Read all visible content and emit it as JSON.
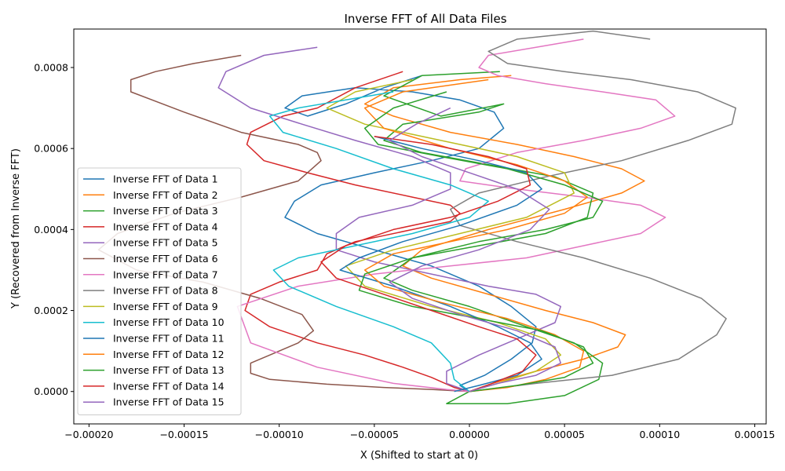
{
  "chart_data": {
    "type": "line",
    "title": "Inverse FFT of All Data Files",
    "xlabel": "X (Shifted to start at 0)",
    "ylabel": "Y (Recovered from Inverse FFT)",
    "xlim": [
      -0.000208,
      0.000156
    ],
    "ylim": [
      -8e-05,
      0.000895
    ],
    "xticks": [
      -0.0002,
      -0.00015,
      -0.0001,
      -5e-05,
      0,
      5e-05,
      0.0001,
      0.00015
    ],
    "xtick_labels": [
      "−0.00020",
      "−0.00015",
      "−0.00010",
      "−0.00005",
      "0.00000",
      "0.00005",
      "0.00010",
      "0.00015"
    ],
    "yticks": [
      0,
      0.0002,
      0.0004,
      0.0006,
      0.0008
    ],
    "ytick_labels": [
      "0.0000",
      "0.0002",
      "0.0004",
      "0.0006",
      "0.0008"
    ],
    "grid": false,
    "legend_position": "lower-left",
    "series": [
      {
        "name": "Inverse FFT of Data 1",
        "color": "#1f77b4",
        "x": [
          0,
          -5e-06,
          8e-06,
          2.2e-05,
          3.3e-05,
          3.5e-05,
          2.2e-05,
          5e-06,
          -2e-05,
          -5e-05,
          -8e-05,
          -9.7e-05,
          -9.2e-05,
          -7.8e-05,
          -5e-05,
          -2e-05,
          5e-06,
          1.8e-05,
          1.3e-05,
          -5e-06,
          -3e-05,
          -6e-05,
          -8.8e-05,
          -9.7e-05,
          -8.5e-05,
          -6.5e-05,
          -4.5e-05,
          -2.5e-05
        ],
        "y": [
          0,
          1.5e-05,
          4e-05,
          8e-05,
          0.00012,
          0.00016,
          0.00021,
          0.00026,
          0.00031,
          0.00035,
          0.00039,
          0.00043,
          0.00047,
          0.00051,
          0.00054,
          0.00057,
          0.0006,
          0.00065,
          0.00069,
          0.00072,
          0.00074,
          0.00075,
          0.00073,
          0.0007,
          0.00068,
          0.00071,
          0.00075,
          0.00078
        ]
      },
      {
        "name": "Inverse FFT of Data 2",
        "color": "#ff7f0e",
        "x": [
          0,
          1.2e-05,
          3.5e-05,
          6e-05,
          7.8e-05,
          8.2e-05,
          6.5e-05,
          4e-05,
          1e-05,
          -2e-05,
          -3.5e-05,
          -2.5e-05,
          1e-05,
          5e-05,
          8e-05,
          9.2e-05,
          8e-05,
          5.5e-05,
          2.5e-05,
          -1e-05,
          -4e-05,
          -5.5e-05,
          -4e-05,
          -5e-06,
          2.2e-05
        ],
        "y": [
          0,
          2e-05,
          5e-05,
          8e-05,
          0.00011,
          0.00014,
          0.00017,
          0.0002,
          0.00024,
          0.00028,
          0.00031,
          0.00035,
          0.0004,
          0.00045,
          0.00049,
          0.00052,
          0.00055,
          0.00058,
          0.00061,
          0.00064,
          0.00068,
          0.00071,
          0.00075,
          0.00077,
          0.00078
        ]
      },
      {
        "name": "Inverse FFT of Data 3",
        "color": "#2ca02c",
        "x": [
          0,
          -1.2e-05,
          2e-05,
          5e-05,
          6.8e-05,
          7e-05,
          5.5e-05,
          3e-05,
          0,
          -3e-05,
          -4.5e-05,
          -3e-05,
          5e-06,
          4e-05,
          6.2e-05,
          6.5e-05,
          4.5e-05,
          1e-05,
          -2.5e-05,
          -4.5e-05,
          -3.5e-05,
          5e-06,
          1.8e-05,
          -1.5e-05,
          -4.5e-05,
          -2.5e-05,
          1.6e-05
        ],
        "y": [
          0,
          -3e-05,
          -3e-05,
          -1e-05,
          3e-05,
          7e-05,
          0.00012,
          0.00016,
          0.00021,
          0.00025,
          0.00028,
          0.00033,
          0.00036,
          0.00039,
          0.00043,
          0.00049,
          0.00053,
          0.00056,
          0.00059,
          0.00062,
          0.00066,
          0.00069,
          0.00071,
          0.00068,
          0.00073,
          0.00078,
          0.00079
        ]
      },
      {
        "name": "Inverse FFT of Data 4",
        "color": "#d62728",
        "x": [
          0,
          -8e-06,
          -2e-05,
          -3.5e-05,
          -5.5e-05,
          -8e-05,
          -0.000105,
          -0.000118,
          -0.000115,
          -0.0001,
          -8e-05,
          -7.5e-05,
          -6e-05,
          -3e-05,
          -1e-05,
          -5e-06,
          -1e-05,
          -3e-05,
          -6e-05,
          -8.5e-05,
          -0.000108,
          -0.000117,
          -0.000115,
          -9.8e-05,
          -8e-05,
          -6e-05,
          -3.5e-05
        ],
        "y": [
          0,
          1e-05,
          3.5e-05,
          6e-05,
          9e-05,
          0.00012,
          0.00016,
          0.0002,
          0.00024,
          0.00027,
          0.0003,
          0.00034,
          0.00037,
          0.0004,
          0.00042,
          0.00044,
          0.00046,
          0.00048,
          0.00051,
          0.00054,
          0.00057,
          0.00061,
          0.00064,
          0.00068,
          0.0007,
          0.00075,
          0.00079
        ]
      },
      {
        "name": "Inverse FFT of Data 5",
        "color": "#9467bd",
        "x": [
          0,
          -1.2e-05,
          -1.2e-05,
          5e-06,
          2.5e-05,
          4.5e-05,
          4.8e-05,
          3.5e-05,
          1e-05,
          -2e-05,
          -5e-05,
          -7e-05,
          -7e-05,
          -5.8e-05,
          -3e-05,
          -1e-05,
          -1e-05,
          -3e-05,
          -6e-05,
          -8.8e-05,
          -0.000115,
          -0.000132,
          -0.000128,
          -0.000108,
          -8e-05
        ],
        "y": [
          0,
          2e-05,
          5e-05,
          9e-05,
          0.00013,
          0.00017,
          0.00021,
          0.00024,
          0.00026,
          0.00029,
          0.00032,
          0.00035,
          0.00039,
          0.00043,
          0.00046,
          0.0005,
          0.00054,
          0.00058,
          0.00062,
          0.00066,
          0.0007,
          0.00075,
          0.00079,
          0.00083,
          0.00085
        ]
      },
      {
        "name": "Inverse FFT of Data 6",
        "color": "#8c564b",
        "x": [
          0,
          -2e-05,
          -4.5e-05,
          -7.5e-05,
          -0.000105,
          -0.000115,
          -0.000115,
          -0.000105,
          -9e-05,
          -8.2e-05,
          -8.8e-05,
          -0.00011,
          -0.00014,
          -0.000175,
          -0.000195,
          -0.000185,
          -0.000155,
          -0.00012,
          -9e-05,
          -7.8e-05,
          -8e-05,
          -9e-05,
          -0.00012,
          -0.00015,
          -0.000178,
          -0.000178,
          -0.000165,
          -0.000145,
          -0.00012
        ],
        "y": [
          0,
          5e-06,
          1e-05,
          1.8e-05,
          3e-05,
          4.5e-05,
          7e-05,
          9e-05,
          0.00012,
          0.00015,
          0.00019,
          0.00023,
          0.00027,
          0.0003,
          0.00035,
          0.00039,
          0.00044,
          0.00048,
          0.00052,
          0.00057,
          0.00059,
          0.00061,
          0.00064,
          0.00069,
          0.00074,
          0.00077,
          0.00079,
          0.00081,
          0.00083
        ]
      },
      {
        "name": "Inverse FFT of Data 7",
        "color": "#e377c2",
        "x": [
          0,
          -1.2e-05,
          -4e-05,
          -8e-05,
          -0.000115,
          -0.000122,
          -9e-05,
          -5e-05,
          -1e-05,
          3e-05,
          6e-05,
          9e-05,
          0.000103,
          9e-05,
          6e-05,
          2.5e-05,
          -5e-06,
          -2e-06,
          2.5e-05,
          6e-05,
          9e-05,
          0.000108,
          9.8e-05,
          7e-05,
          4e-05,
          1.5e-05,
          5e-06,
          1e-05,
          3.5e-05,
          6e-05
        ],
        "y": [
          0,
          5e-06,
          2e-05,
          6e-05,
          0.00012,
          0.00021,
          0.00026,
          0.00029,
          0.00031,
          0.00033,
          0.00036,
          0.00039,
          0.00043,
          0.00046,
          0.00048,
          0.0005,
          0.00052,
          0.00055,
          0.00059,
          0.00062,
          0.00065,
          0.00068,
          0.00072,
          0.00074,
          0.00076,
          0.00078,
          0.0008,
          0.00083,
          0.00085,
          0.00087
        ]
      },
      {
        "name": "Inverse FFT of Data 8",
        "color": "#7f7f7f",
        "x": [
          0,
          3.5e-05,
          7.5e-05,
          0.00011,
          0.00013,
          0.000135,
          0.000122,
          9.5e-05,
          6e-05,
          2.5e-05,
          -5e-06,
          -1e-05,
          5e-06,
          4e-05,
          8e-05,
          0.000115,
          0.000138,
          0.00014,
          0.00012,
          8.5e-05,
          5e-05,
          2e-05,
          1e-05,
          2.5e-05,
          6.5e-05,
          9.5e-05
        ],
        "y": [
          0,
          2e-05,
          4e-05,
          8e-05,
          0.00014,
          0.00018,
          0.00023,
          0.00028,
          0.00033,
          0.00037,
          0.00041,
          0.00045,
          0.00049,
          0.00053,
          0.00057,
          0.00062,
          0.00066,
          0.0007,
          0.00074,
          0.00077,
          0.00079,
          0.00081,
          0.00084,
          0.00087,
          0.00089,
          0.00087
        ]
      },
      {
        "name": "Inverse FFT of Data 9",
        "color": "#bcbd22",
        "x": [
          0,
          1.5e-05,
          3.5e-05,
          4.8e-05,
          4e-05,
          1.5e-05,
          -2e-05,
          -5.5e-05,
          -6.5e-05,
          -4e-05,
          -5e-06,
          3e-05,
          5.5e-05,
          5e-05,
          2.5e-05,
          -1.5e-05,
          -5.5e-05,
          -7.5e-05,
          -6e-05,
          -3e-05
        ],
        "y": [
          0,
          2e-05,
          5e-05,
          9e-05,
          0.00013,
          0.00017,
          0.00021,
          0.00026,
          0.00031,
          0.00035,
          0.00039,
          0.00043,
          0.00049,
          0.00054,
          0.00058,
          0.00062,
          0.00066,
          0.0007,
          0.00074,
          0.00077
        ]
      },
      {
        "name": "Inverse FFT of Data 10",
        "color": "#17becf",
        "x": [
          0,
          -8e-06,
          -1e-05,
          -2e-05,
          -4e-05,
          -7e-05,
          -9.5e-05,
          -0.000103,
          -9e-05,
          -6e-05,
          -3e-05,
          0,
          1e-05,
          -1e-05,
          -4e-05,
          -7e-05,
          -9.8e-05,
          -0.000105,
          -9e-05,
          -6.5e-05,
          -4e-05
        ],
        "y": [
          0,
          3e-05,
          7e-05,
          0.00012,
          0.00016,
          0.00021,
          0.00026,
          0.0003,
          0.00033,
          0.00036,
          0.00039,
          0.00043,
          0.00047,
          0.00051,
          0.00055,
          0.0006,
          0.00064,
          0.00068,
          0.0007,
          0.00072,
          0.00074
        ]
      },
      {
        "name": "Inverse FFT of Data 11",
        "color": "#1f77b4",
        "x": [
          -8e-06,
          5e-06,
          2.5e-05,
          3.8e-05,
          3.2e-05,
          1.5e-05,
          -1e-05,
          -4e-05,
          -6.8e-05,
          -5.8e-05,
          -3.5e-05,
          -5e-06,
          2.5e-05,
          3.8e-05,
          3e-05,
          5e-06,
          -2.5e-05,
          -5e-05
        ],
        "y": [
          0,
          1.5e-05,
          4e-05,
          8e-05,
          0.00012,
          0.00016,
          0.00021,
          0.00026,
          0.0003,
          0.00033,
          0.00037,
          0.00041,
          0.00046,
          0.0005,
          0.00054,
          0.00057,
          0.0006,
          0.00063
        ]
      },
      {
        "name": "Inverse FFT of Data 12",
        "color": "#ff7f0e",
        "x": [
          0,
          2e-05,
          4e-05,
          5.8e-05,
          6e-05,
          4.5e-05,
          2e-05,
          -1.5e-05,
          -4.5e-05,
          -5.5e-05,
          -4e-05,
          -1e-05,
          2e-05,
          5e-05,
          6.2e-05,
          5e-05,
          2.5e-05,
          -1e-05,
          -4.5e-05,
          -5.5e-05,
          -3.5e-05,
          1e-05
        ],
        "y": [
          0,
          1e-05,
          3e-05,
          6e-05,
          0.0001,
          0.00014,
          0.00018,
          0.00022,
          0.00026,
          0.0003,
          0.00034,
          0.00037,
          0.0004,
          0.00044,
          0.00048,
          0.00052,
          0.00056,
          0.0006,
          0.00065,
          0.0007,
          0.00074,
          0.00077
        ]
      },
      {
        "name": "Inverse FFT of Data 13",
        "color": "#2ca02c",
        "x": [
          0,
          2.5e-05,
          5e-05,
          6.5e-05,
          6e-05,
          3.8e-05,
          5e-06,
          -3e-05,
          -5.8e-05,
          -5.5e-05,
          -3e-05,
          5e-06,
          4e-05,
          6.5e-05,
          7e-05,
          5e-05,
          2e-05,
          -1.5e-05,
          -4.8e-05,
          -5.5e-05,
          -4e-05,
          -1.2e-05
        ],
        "y": [
          0,
          1.5e-05,
          3.5e-05,
          7e-05,
          0.00011,
          0.00015,
          0.00018,
          0.00021,
          0.00025,
          0.00029,
          0.00033,
          0.00037,
          0.0004,
          0.00043,
          0.00047,
          0.00051,
          0.00055,
          0.00058,
          0.00061,
          0.00065,
          0.0007,
          0.00074
        ]
      },
      {
        "name": "Inverse FFT of Data 14",
        "color": "#d62728",
        "x": [
          0,
          1.2e-05,
          2.8e-05,
          3.5e-05,
          2.5e-05,
          5e-06,
          -2e-05,
          -4.5e-05,
          -7e-05,
          -7.8e-05,
          -6.5e-05,
          -4e-05,
          -1e-05,
          1.5e-05,
          3.2e-05,
          3e-05,
          1e-05,
          -2e-05,
          -5e-05
        ],
        "y": [
          0,
          2e-05,
          5e-05,
          9e-05,
          0.00013,
          0.00016,
          0.0002,
          0.00024,
          0.00028,
          0.00032,
          0.00036,
          0.0004,
          0.00043,
          0.00047,
          0.00051,
          0.00055,
          0.00058,
          0.00061,
          0.00063
        ]
      },
      {
        "name": "Inverse FFT of Data 15",
        "color": "#9467bd",
        "x": [
          0,
          1.5e-05,
          3.5e-05,
          4.8e-05,
          4.5e-05,
          2.5e-05,
          -5e-06,
          -3e-05,
          -4.2e-05,
          -2.5e-05,
          5e-06,
          3.2e-05,
          4.2e-05,
          2.5e-05,
          0,
          -2.5e-05,
          -4.2e-05,
          -2.8e-05,
          -1e-05
        ],
        "y": [
          0,
          2e-05,
          4e-05,
          7e-05,
          0.00011,
          0.00015,
          0.00019,
          0.00023,
          0.00027,
          0.00031,
          0.00035,
          0.0004,
          0.00045,
          0.0005,
          0.00054,
          0.00058,
          0.00062,
          0.00066,
          0.0007
        ]
      }
    ]
  }
}
